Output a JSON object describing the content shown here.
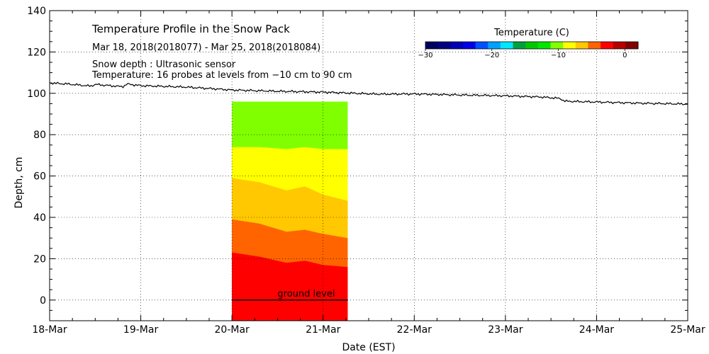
{
  "chart_data": {
    "type": "area",
    "title": "Temperature Profile in the Snow Pack",
    "annotations": {
      "date_range": "Mar 18, 2018(2018077) - Mar 25, 2018(2018084)",
      "snow_depth_note": "Snow depth : Ultrasonic sensor",
      "temperature_note": "Temperature: 16 probes at levels from −10 cm to 90 cm",
      "ground_label": "ground level"
    },
    "xlabel": "Date (EST)",
    "ylabel": "Depth, cm",
    "x_ticks": [
      "18-Mar",
      "19-Mar",
      "20-Mar",
      "21-Mar",
      "22-Mar",
      "23-Mar",
      "24-Mar",
      "25-Mar"
    ],
    "y_ticks": [
      "0",
      "20",
      "40",
      "60",
      "80",
      "100",
      "120",
      "140"
    ],
    "xlim": [
      18,
      25
    ],
    "ylim": [
      -10,
      140
    ],
    "grid": true,
    "colorbar": {
      "title": "Temperature (C)",
      "ticks": [
        "−30",
        "−20",
        "−10",
        "0"
      ],
      "tick_values": [
        -30,
        -20,
        -10,
        0
      ],
      "range": [
        -30,
        2
      ],
      "colors": [
        "#00005f",
        "#000080",
        "#0000b4",
        "#0000e6",
        "#0050ff",
        "#00a0ff",
        "#00e6ff",
        "#00a040",
        "#00c800",
        "#00e600",
        "#80ff00",
        "#ffff00",
        "#ffc800",
        "#ff6400",
        "#ff0000",
        "#b40000",
        "#800000"
      ]
    },
    "snow_depth": {
      "x": [
        18.0,
        18.2,
        18.45,
        18.5,
        18.8,
        18.85,
        19.0,
        19.5,
        19.8,
        20.0,
        20.5,
        21.0,
        21.3,
        21.6,
        22.0,
        22.5,
        23.0,
        23.4,
        23.6,
        23.65,
        23.8,
        24.0,
        24.5,
        25.0
      ],
      "y": [
        105,
        104.5,
        103.5,
        104.3,
        103.2,
        104.5,
        103.7,
        103.0,
        102.2,
        101.6,
        101.0,
        100.6,
        100.1,
        99.6,
        99.7,
        99.2,
        98.8,
        98.2,
        97.5,
        96.2,
        96.0,
        95.8,
        95.2,
        94.8
      ]
    },
    "temperature_profile": {
      "x": [
        20.0,
        20.3,
        20.6,
        20.8,
        21.0,
        21.27
      ],
      "x_end": 21.27,
      "top_depth": 96,
      "bottom_depth": -10,
      "bands": [
        {
          "color": "#ff0000",
          "upper": [
            23,
            21,
            18,
            19,
            17,
            16
          ]
        },
        {
          "color": "#ff6400",
          "upper": [
            39,
            37,
            33,
            34,
            32,
            30
          ]
        },
        {
          "color": "#ffc800",
          "upper": [
            59,
            57,
            53,
            55,
            51,
            48
          ]
        },
        {
          "color": "#ffff00",
          "upper": [
            74,
            74,
            73,
            74,
            73,
            73
          ]
        },
        {
          "color": "#80ff00",
          "upper": [
            96,
            96,
            96,
            96,
            96,
            96
          ]
        }
      ]
    },
    "ground_level": 0
  }
}
